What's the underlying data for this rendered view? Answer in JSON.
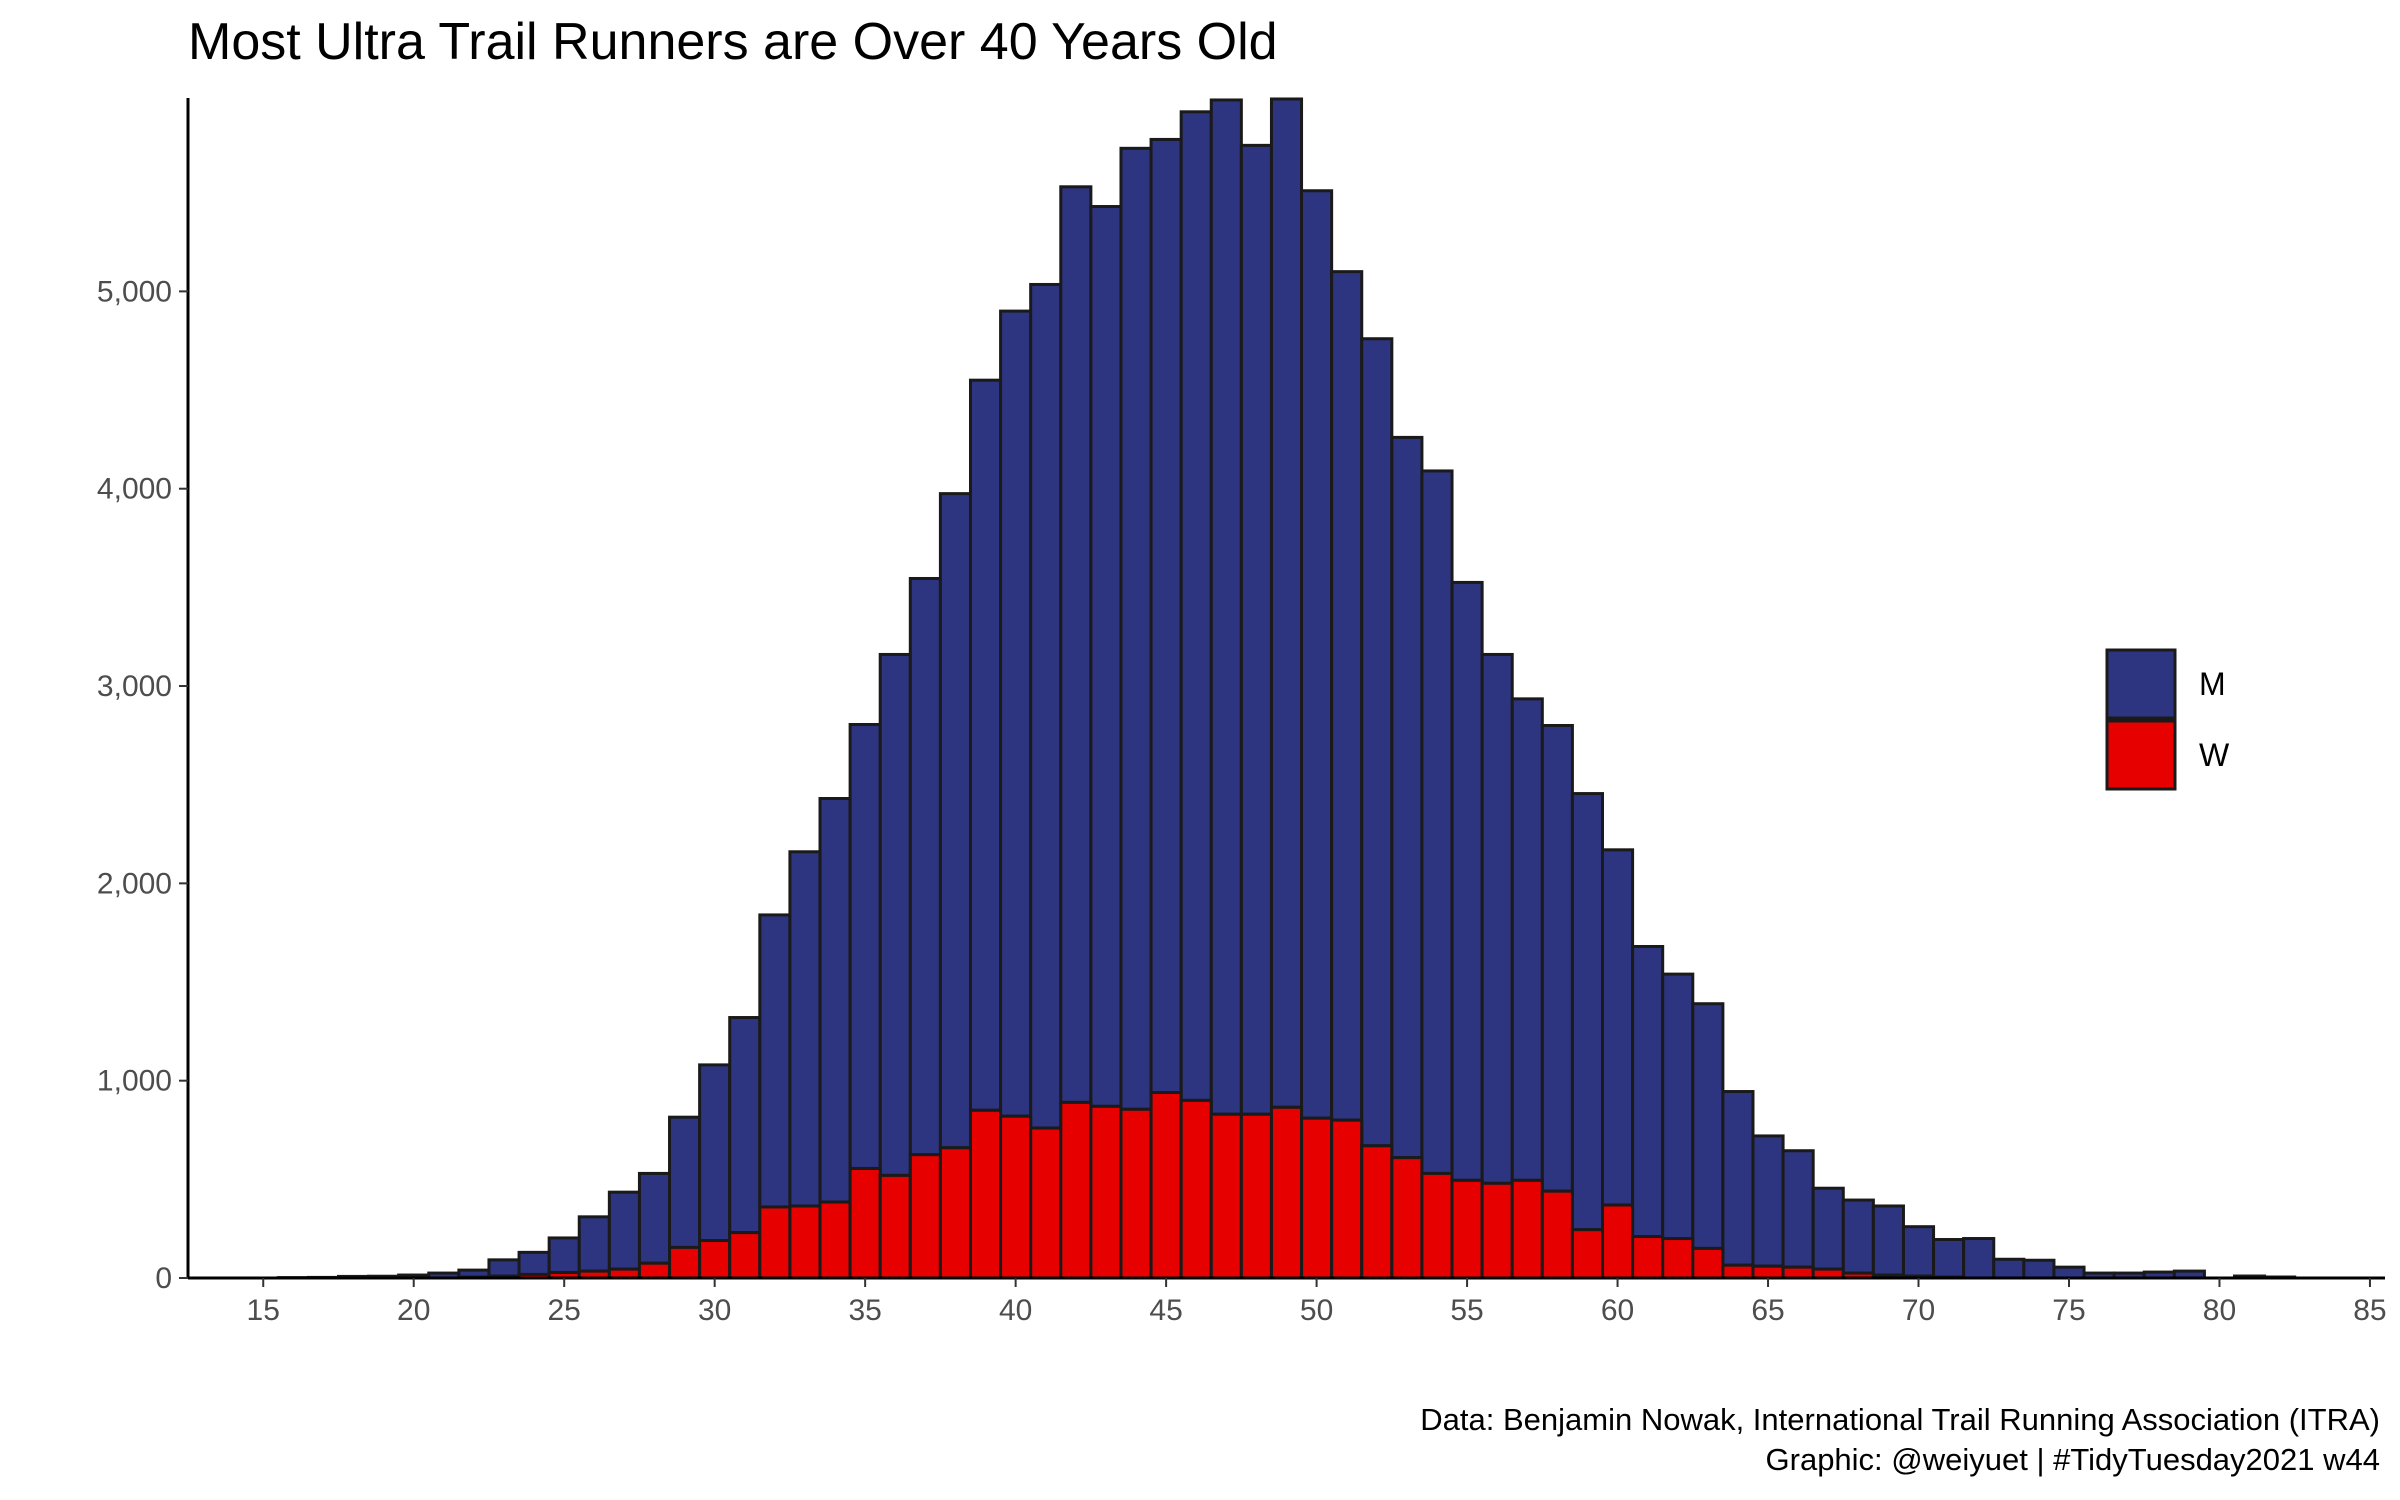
{
  "chart_data": {
    "type": "bar",
    "stacked": true,
    "title": "Most Ultra Trail Runners are Over 40 Years Old",
    "xlabel": "",
    "ylabel": "",
    "x": [
      15,
      16,
      17,
      18,
      19,
      20,
      21,
      22,
      23,
      24,
      25,
      26,
      27,
      28,
      29,
      30,
      31,
      32,
      33,
      34,
      35,
      36,
      37,
      38,
      39,
      40,
      41,
      42,
      43,
      44,
      45,
      46,
      47,
      48,
      49,
      50,
      51,
      52,
      53,
      54,
      55,
      56,
      57,
      58,
      59,
      60,
      61,
      62,
      63,
      64,
      65,
      66,
      67,
      68,
      69,
      70,
      71,
      72,
      73,
      74,
      75,
      76,
      77,
      78,
      79,
      80,
      81,
      82,
      83,
      84,
      85
    ],
    "series": [
      {
        "name": "M",
        "color": "#2e3580",
        "values": [
          0,
          2,
          3,
          8,
          9,
          15,
          25,
          35,
          82,
          112,
          175,
          275,
          390,
          455,
          660,
          890,
          1090,
          1480,
          1795,
          2045,
          2250,
          2640,
          2920,
          3315,
          3700,
          4080,
          4275,
          4640,
          4560,
          4870,
          4830,
          5010,
          5140,
          4910,
          5110,
          4700,
          4300,
          4090,
          3650,
          3560,
          3030,
          2680,
          2440,
          2360,
          2210,
          1800,
          1470,
          1340,
          1240,
          880,
          660,
          590,
          410,
          370,
          350,
          250,
          190,
          200,
          95,
          90,
          55,
          25,
          25,
          30,
          35,
          0,
          10,
          5,
          0,
          0,
          0
        ]
      },
      {
        "name": "W",
        "color": "#e60000",
        "values": [
          0,
          0,
          0,
          0,
          0,
          0,
          0,
          5,
          10,
          18,
          28,
          35,
          45,
          75,
          155,
          190,
          230,
          360,
          365,
          385,
          555,
          520,
          625,
          660,
          850,
          820,
          760,
          890,
          870,
          855,
          940,
          900,
          830,
          830,
          865,
          810,
          800,
          670,
          610,
          530,
          495,
          480,
          495,
          440,
          245,
          370,
          210,
          200,
          150,
          65,
          60,
          55,
          45,
          25,
          15,
          10,
          5,
          0,
          0,
          0,
          0,
          0,
          0,
          0,
          0,
          0,
          0,
          0,
          0,
          0,
          0
        ]
      }
    ],
    "ylim": [
      0,
      5980
    ],
    "xlim": [
      12.5,
      85.5
    ],
    "y_ticks": [
      0,
      1000,
      2000,
      3000,
      4000,
      5000
    ],
    "y_tick_labels": [
      "0",
      "1,000",
      "2,000",
      "3,000",
      "4,000",
      "5,000"
    ],
    "x_ticks": [
      15,
      20,
      25,
      30,
      35,
      40,
      45,
      50,
      55,
      60,
      65,
      70,
      75,
      80,
      85
    ],
    "x_tick_labels": [
      "15",
      "20",
      "25",
      "30",
      "35",
      "40",
      "45",
      "50",
      "55",
      "60",
      "65",
      "70",
      "75",
      "80",
      "85"
    ],
    "grid": false,
    "legend": {
      "placement": "right",
      "entries": [
        "M",
        "W"
      ]
    },
    "bar_outline_color": "#1a1a1a"
  },
  "caption": {
    "line1": "Data: Benjamin Nowak, International Trail Running Association (ITRA)",
    "line2": "Graphic: @weiyuet | #TidyTuesday2021 w44"
  }
}
